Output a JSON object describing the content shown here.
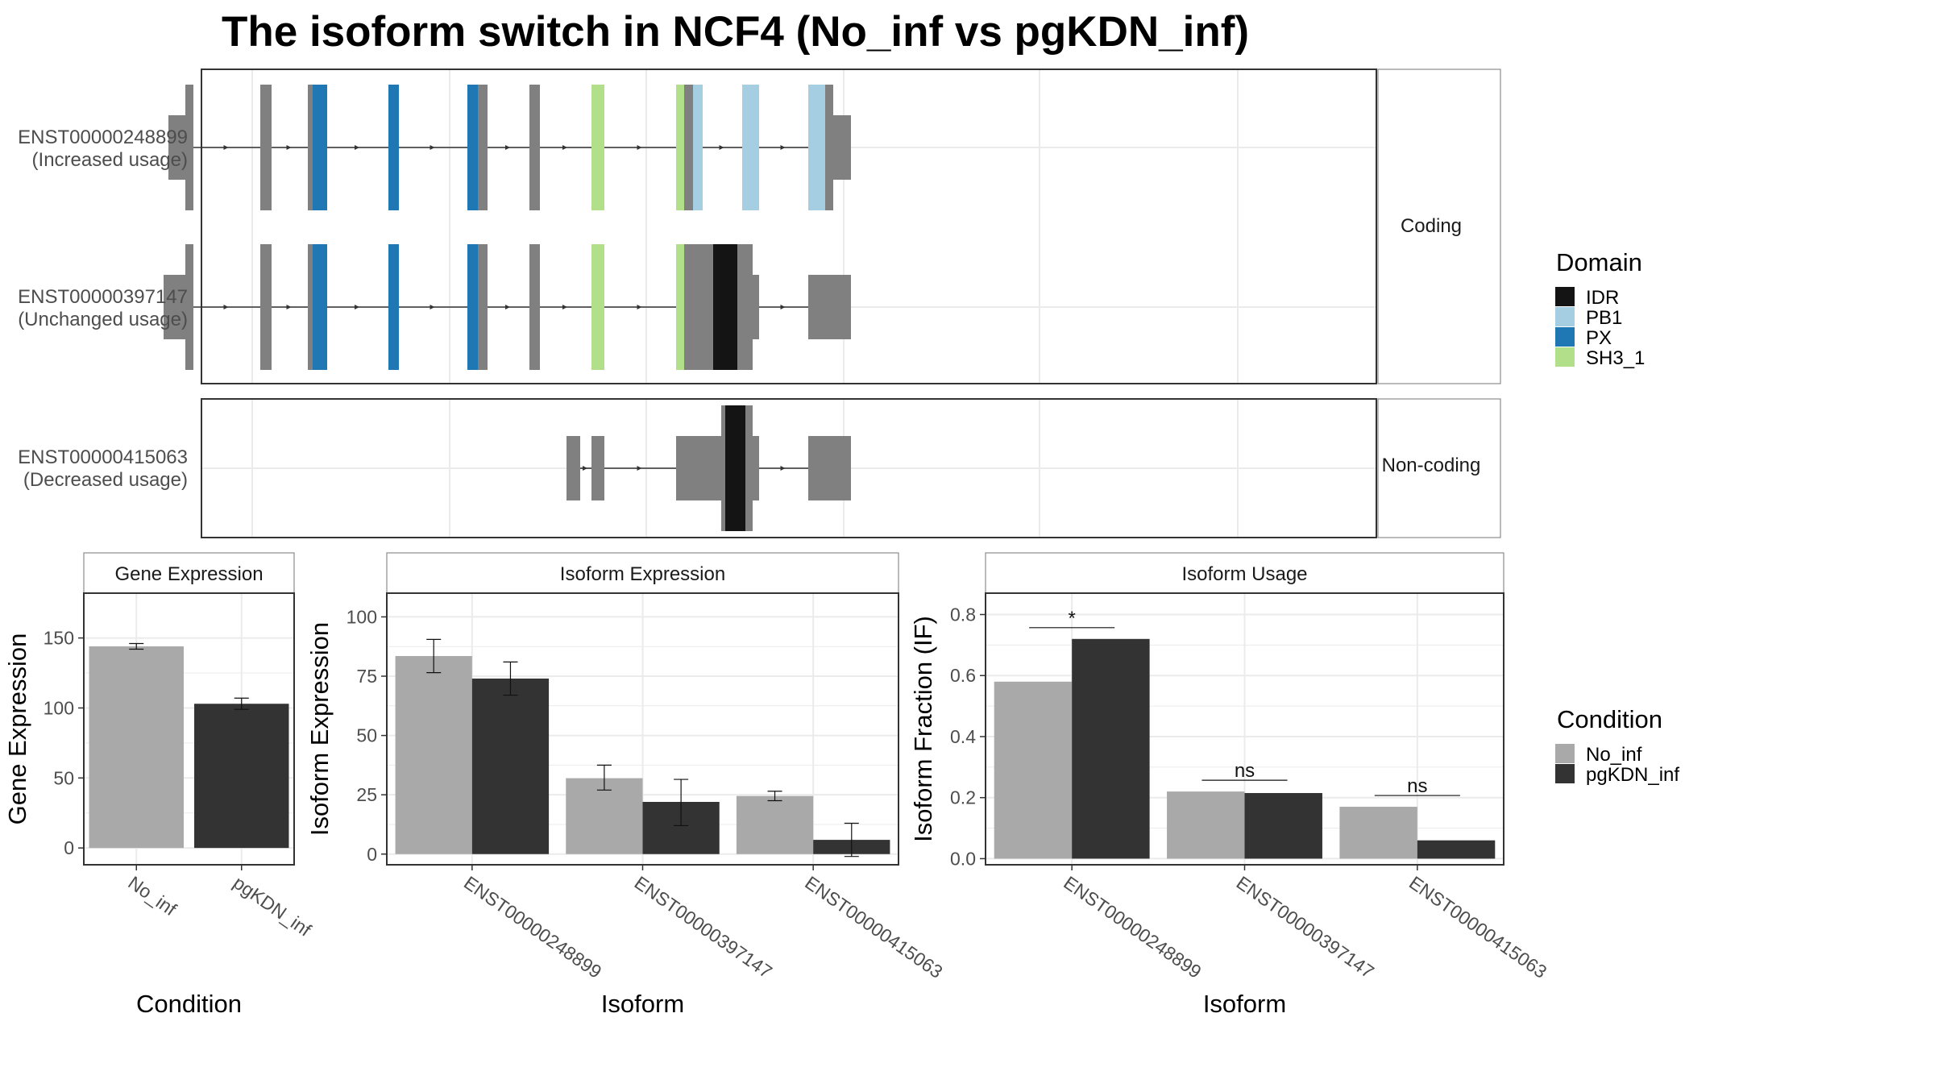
{
  "title": "The isoform switch in NCF4 (No_inf vs pgKDN_inf)",
  "colors": {
    "domain": {
      "IDR": "#141414",
      "PB1": "#a6cee3",
      "PX": "#1f78b4",
      "SH3_1": "#b2df8a"
    },
    "exon": "#808080",
    "no_inf": "#a9a9a9",
    "pgkdn_inf": "#333333",
    "grid": "#ebebeb",
    "panel_border": "#333333",
    "strip_border": "#8c8c8c"
  },
  "structure": {
    "coding_strip": "Coding",
    "noncoding_strip": "Non-coding",
    "isoforms": [
      {
        "id": "ENST00000248899",
        "usage": "(Increased usage)",
        "panel": "coding",
        "exons": [
          {
            "s": 209,
            "e": 230,
            "h": "n",
            "fill": "exon"
          },
          {
            "s": 230,
            "e": 240,
            "h": "t",
            "fill": "exon"
          },
          {
            "s": 323,
            "e": 337,
            "h": "t",
            "fill": "exon"
          },
          {
            "s": 382,
            "e": 388,
            "h": "t",
            "fill": "exon"
          },
          {
            "s": 388,
            "e": 406,
            "h": "t",
            "fill": "PX"
          },
          {
            "s": 482,
            "e": 495,
            "h": "t",
            "fill": "PX"
          },
          {
            "s": 580,
            "e": 593,
            "h": "t",
            "fill": "PX"
          },
          {
            "s": 593,
            "e": 605,
            "h": "t",
            "fill": "exon"
          },
          {
            "s": 657,
            "e": 670,
            "h": "t",
            "fill": "exon"
          },
          {
            "s": 734,
            "e": 750,
            "h": "t",
            "fill": "SH3_1"
          },
          {
            "s": 839,
            "e": 849,
            "h": "t",
            "fill": "SH3_1"
          },
          {
            "s": 849,
            "e": 860,
            "h": "t",
            "fill": "exon"
          },
          {
            "s": 860,
            "e": 872,
            "h": "t",
            "fill": "PB1"
          },
          {
            "s": 921,
            "e": 942,
            "h": "t",
            "fill": "PB1"
          },
          {
            "s": 1003,
            "e": 1024,
            "h": "t",
            "fill": "PB1"
          },
          {
            "s": 1024,
            "e": 1034,
            "h": "t",
            "fill": "exon"
          },
          {
            "s": 1034,
            "e": 1056,
            "h": "n",
            "fill": "exon"
          }
        ],
        "introns": [
          [
            240,
            323
          ],
          [
            337,
            382
          ],
          [
            406,
            482
          ],
          [
            495,
            580
          ],
          [
            605,
            657
          ],
          [
            670,
            734
          ],
          [
            750,
            839
          ],
          [
            872,
            921
          ],
          [
            942,
            1003
          ]
        ]
      },
      {
        "id": "ENST00000397147",
        "usage": "(Unchanged usage)",
        "panel": "coding",
        "exons": [
          {
            "s": 203,
            "e": 230,
            "h": "n",
            "fill": "exon"
          },
          {
            "s": 230,
            "e": 240,
            "h": "t",
            "fill": "exon"
          },
          {
            "s": 323,
            "e": 337,
            "h": "t",
            "fill": "exon"
          },
          {
            "s": 382,
            "e": 388,
            "h": "t",
            "fill": "exon"
          },
          {
            "s": 388,
            "e": 406,
            "h": "t",
            "fill": "PX"
          },
          {
            "s": 482,
            "e": 495,
            "h": "t",
            "fill": "PX"
          },
          {
            "s": 580,
            "e": 593,
            "h": "t",
            "fill": "PX"
          },
          {
            "s": 593,
            "e": 605,
            "h": "t",
            "fill": "exon"
          },
          {
            "s": 657,
            "e": 670,
            "h": "t",
            "fill": "exon"
          },
          {
            "s": 734,
            "e": 750,
            "h": "t",
            "fill": "SH3_1"
          },
          {
            "s": 839,
            "e": 849,
            "h": "t",
            "fill": "SH3_1"
          },
          {
            "s": 849,
            "e": 885,
            "h": "t",
            "fill": "exon"
          },
          {
            "s": 885,
            "e": 915,
            "h": "t",
            "fill": "IDR"
          },
          {
            "s": 915,
            "e": 934,
            "h": "t",
            "fill": "exon"
          },
          {
            "s": 934,
            "e": 942,
            "h": "n",
            "fill": "exon"
          },
          {
            "s": 1003,
            "e": 1056,
            "h": "n",
            "fill": "exon"
          }
        ],
        "introns": [
          [
            240,
            323
          ],
          [
            337,
            382
          ],
          [
            406,
            482
          ],
          [
            495,
            580
          ],
          [
            605,
            657
          ],
          [
            670,
            734
          ],
          [
            750,
            839
          ],
          [
            942,
            1003
          ]
        ]
      },
      {
        "id": "ENST00000415063",
        "usage": "(Decreased usage)",
        "panel": "noncoding",
        "exons": [
          {
            "s": 703,
            "e": 720,
            "h": "n",
            "fill": "exon"
          },
          {
            "s": 734,
            "e": 750,
            "h": "n",
            "fill": "exon"
          },
          {
            "s": 839,
            "e": 895,
            "h": "n",
            "fill": "exon"
          },
          {
            "s": 895,
            "e": 900,
            "h": "t",
            "fill": "exon"
          },
          {
            "s": 900,
            "e": 925,
            "h": "t",
            "fill": "IDR"
          },
          {
            "s": 925,
            "e": 934,
            "h": "t",
            "fill": "exon"
          },
          {
            "s": 934,
            "e": 942,
            "h": "n",
            "fill": "exon"
          },
          {
            "s": 1003,
            "e": 1056,
            "h": "n",
            "fill": "exon"
          }
        ],
        "introns": [
          [
            720,
            734
          ],
          [
            750,
            839
          ],
          [
            942,
            1003
          ]
        ]
      }
    ]
  },
  "legends": {
    "domain": {
      "title": "Domain",
      "items": [
        "IDR",
        "PB1",
        "PX",
        "SH3_1"
      ]
    },
    "condition": {
      "title": "Condition",
      "items": [
        "No_inf",
        "pgKDN_inf"
      ]
    }
  },
  "chart_data": [
    {
      "type": "bar",
      "title": "Gene Expression",
      "xlabel": "Condition",
      "ylabel": "Gene Expression",
      "categories": [
        "No_inf",
        "pgKDN_inf"
      ],
      "values": [
        144,
        103
      ],
      "errors": [
        [
          142,
          146
        ],
        [
          99,
          107
        ]
      ],
      "ylim": [
        -12,
        182
      ],
      "yticks": [
        0,
        50,
        100,
        150
      ],
      "grid": true
    },
    {
      "type": "bar",
      "title": "Isoform Expression",
      "xlabel": "Isoform",
      "ylabel": "Isoform Expression",
      "categories": [
        "ENST00000248899",
        "ENST00000397147",
        "ENST00000415063"
      ],
      "series": [
        {
          "name": "No_inf",
          "values": [
            83.5,
            32,
            24.5
          ],
          "errors": [
            [
              76.5,
              90.5
            ],
            [
              27,
              37.5
            ],
            [
              22.5,
              26.5
            ]
          ]
        },
        {
          "name": "pgKDN_inf",
          "values": [
            74,
            22,
            6
          ],
          "errors": [
            [
              67,
              81
            ],
            [
              12,
              31.5
            ],
            [
              -1,
              13
            ]
          ]
        }
      ],
      "ylim": [
        -4.5,
        110
      ],
      "yticks": [
        0,
        25,
        50,
        75,
        100
      ],
      "grid": true
    },
    {
      "type": "bar",
      "title": "Isoform Usage",
      "xlabel": "Isoform",
      "ylabel": "Isoform Fraction (IF)",
      "categories": [
        "ENST00000248899",
        "ENST00000397147",
        "ENST00000415063"
      ],
      "series": [
        {
          "name": "No_inf",
          "values": [
            0.58,
            0.22,
            0.17
          ]
        },
        {
          "name": "pgKDN_inf",
          "values": [
            0.72,
            0.215,
            0.06
          ]
        }
      ],
      "annotations": [
        "*",
        "ns",
        "ns"
      ],
      "ylim": [
        -0.02,
        0.87
      ],
      "yticks": [
        0.0,
        0.2,
        0.4,
        0.6,
        0.8
      ],
      "ytick_labels": [
        "0.0",
        "0.2",
        "0.4",
        "0.6",
        "0.8"
      ],
      "grid": true
    }
  ]
}
